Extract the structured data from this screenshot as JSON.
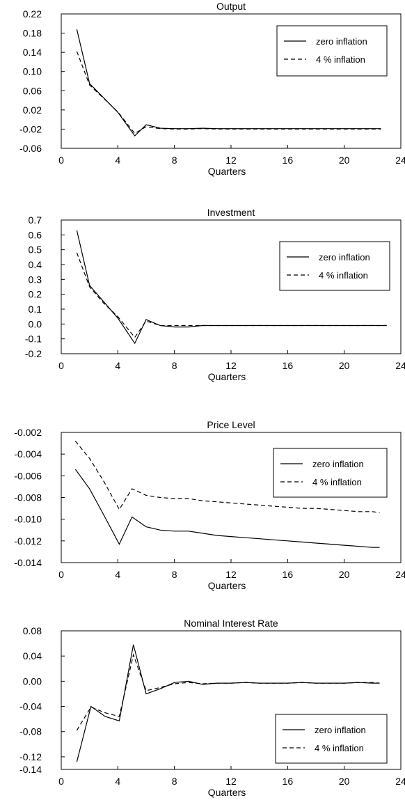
{
  "chart_data": [
    {
      "type": "line",
      "title": "Output",
      "xlabel": "Quarters",
      "ylabel": "",
      "xlim": [
        0,
        24
      ],
      "ylim": [
        -0.06,
        0.22
      ],
      "xticks": [
        0,
        4,
        8,
        12,
        16,
        20,
        24
      ],
      "xtick_labels": [
        "0",
        "4",
        "8",
        "12",
        "16",
        "20",
        "24"
      ],
      "yticks": [
        0.22,
        0.18,
        0.14,
        0.1,
        0.06,
        0.02,
        -0.02,
        -0.06
      ],
      "ytick_labels": [
        "0.22",
        "0.18",
        "0.14",
        "0.10",
        "0.06",
        "0.02",
        "-0.02",
        "-0.06"
      ],
      "legend_position": "top-right",
      "grid": false,
      "series": [
        {
          "name": "zero inflation",
          "style": "solid",
          "x": [
            1.1,
            2,
            3,
            4,
            5.2,
            6,
            7,
            8,
            9,
            10,
            11,
            12,
            13,
            14,
            15,
            16,
            17,
            18,
            19,
            20,
            21,
            22,
            22.6
          ],
          "y": [
            0.188,
            0.075,
            0.045,
            0.015,
            -0.034,
            -0.011,
            -0.018,
            -0.019,
            -0.019,
            -0.018,
            -0.019,
            -0.019,
            -0.019,
            -0.019,
            -0.019,
            -0.019,
            -0.019,
            -0.019,
            -0.019,
            -0.019,
            -0.019,
            -0.019,
            -0.019
          ]
        },
        {
          "name": "4 % inflation",
          "style": "dashed",
          "x": [
            1.1,
            2,
            3,
            4,
            5.2,
            6,
            7,
            8,
            9,
            10,
            11,
            12,
            13,
            14,
            15,
            16,
            17,
            18,
            19,
            20,
            21,
            22,
            22.6
          ],
          "y": [
            0.142,
            0.072,
            0.044,
            0.016,
            -0.029,
            -0.015,
            -0.019,
            -0.02,
            -0.02,
            -0.019,
            -0.02,
            -0.02,
            -0.02,
            -0.02,
            -0.02,
            -0.02,
            -0.02,
            -0.02,
            -0.02,
            -0.02,
            -0.02,
            -0.02,
            -0.02
          ]
        }
      ]
    },
    {
      "type": "line",
      "title": "Investment",
      "xlabel": "Quarters",
      "ylabel": "",
      "xlim": [
        0,
        24
      ],
      "ylim": [
        -0.2,
        0.7
      ],
      "xticks": [
        0,
        4,
        8,
        12,
        16,
        20,
        24
      ],
      "xtick_labels": [
        "0",
        "4",
        "8",
        "12",
        "16",
        "20",
        "24"
      ],
      "yticks": [
        0.7,
        0.6,
        0.5,
        0.4,
        0.3,
        0.2,
        0.1,
        0.0,
        -0.1,
        -0.2
      ],
      "ytick_labels": [
        "0.7",
        "0.6",
        "0.5",
        "0.4",
        "0.3",
        "0.2",
        "0.1",
        "0.0",
        "-0.1",
        "-0.2"
      ],
      "legend_position": "top-right",
      "grid": false,
      "series": [
        {
          "name": "zero inflation",
          "style": "solid",
          "x": [
            1.1,
            2,
            3,
            4,
            5.2,
            6,
            7,
            8,
            9,
            10,
            11,
            12,
            13,
            14,
            15,
            16,
            17,
            18,
            19,
            20,
            21,
            22,
            23
          ],
          "y": [
            0.63,
            0.26,
            0.15,
            0.04,
            -0.13,
            0.03,
            -0.01,
            -0.02,
            -0.02,
            -0.01,
            -0.01,
            -0.01,
            -0.01,
            -0.01,
            -0.01,
            -0.01,
            -0.01,
            -0.01,
            -0.01,
            -0.01,
            -0.01,
            -0.01,
            -0.01
          ]
        },
        {
          "name": "4 % inflation",
          "style": "dashed",
          "x": [
            1.1,
            2,
            3,
            4,
            5.2,
            6,
            7,
            8,
            9,
            10,
            11,
            12,
            13,
            14,
            15,
            16,
            17,
            18,
            19,
            20,
            21,
            22,
            23
          ],
          "y": [
            0.48,
            0.25,
            0.14,
            0.05,
            -0.09,
            0.02,
            -0.01,
            -0.01,
            -0.01,
            -0.01,
            -0.01,
            -0.01,
            -0.01,
            -0.01,
            -0.01,
            -0.01,
            -0.01,
            -0.01,
            -0.01,
            -0.01,
            -0.01,
            -0.01,
            -0.01
          ]
        }
      ]
    },
    {
      "type": "line",
      "title": "Price Level",
      "xlabel": "Quarters",
      "ylabel": "",
      "xlim": [
        0,
        24
      ],
      "ylim": [
        -0.014,
        -0.002
      ],
      "xticks": [
        0,
        4,
        8,
        12,
        16,
        20,
        24
      ],
      "xtick_labels": [
        "0",
        "4",
        "8",
        "12",
        "16",
        "20",
        "24"
      ],
      "yticks": [
        -0.002,
        -0.004,
        -0.006,
        -0.008,
        -0.01,
        -0.012,
        -0.014
      ],
      "ytick_labels": [
        "-0.002",
        "-0.004",
        "-0.006",
        "-0.008",
        "-0.010",
        "-0.012",
        "-0.014"
      ],
      "legend_position": "top-right",
      "grid": false,
      "series": [
        {
          "name": "zero inflation",
          "style": "solid",
          "x": [
            1,
            2,
            3,
            4.1,
            5,
            6,
            7,
            8,
            9,
            10,
            11,
            12,
            13,
            14,
            15,
            16,
            17,
            18,
            19,
            20,
            21,
            22,
            22.5
          ],
          "y": [
            -0.0054,
            -0.0072,
            -0.0096,
            -0.0123,
            -0.0098,
            -0.0107,
            -0.011,
            -0.0111,
            -0.0111,
            -0.0113,
            -0.0115,
            -0.0116,
            -0.0117,
            -0.0118,
            -0.0119,
            -0.012,
            -0.0121,
            -0.0122,
            -0.0123,
            -0.0124,
            -0.0125,
            -0.0126,
            -0.0126
          ]
        },
        {
          "name": "4 % inflation",
          "style": "dashed",
          "x": [
            1,
            2,
            3,
            4.1,
            5,
            6,
            7,
            8,
            9,
            10,
            11,
            12,
            13,
            14,
            15,
            16,
            17,
            18,
            19,
            20,
            21,
            22,
            22.5
          ],
          "y": [
            -0.0028,
            -0.0044,
            -0.0065,
            -0.0091,
            -0.0072,
            -0.0078,
            -0.008,
            -0.0081,
            -0.0081,
            -0.0083,
            -0.0084,
            -0.0085,
            -0.0086,
            -0.0087,
            -0.0088,
            -0.0089,
            -0.009,
            -0.009,
            -0.0091,
            -0.0092,
            -0.0093,
            -0.0093,
            -0.0094
          ]
        }
      ]
    },
    {
      "type": "line",
      "title": "Nominal Interest Rate",
      "xlabel": "Quarters",
      "ylabel": "",
      "xlim": [
        0,
        24
      ],
      "ylim": [
        -0.14,
        0.08
      ],
      "xticks": [
        0,
        4,
        8,
        12,
        16,
        20,
        24
      ],
      "xtick_labels": [
        "0",
        "4",
        "8",
        "12",
        "16",
        "20",
        "24"
      ],
      "yticks": [
        0.08,
        0.04,
        0.0,
        -0.04,
        -0.08,
        -0.12,
        -0.14
      ],
      "ytick_labels": [
        "0.08",
        "0.04",
        "0.00",
        "-0.04",
        "-0.08",
        "-0.12",
        "-0.14"
      ],
      "legend_position": "bottom-right",
      "grid": false,
      "series": [
        {
          "name": "zero inflation",
          "style": "solid",
          "x": [
            1.1,
            2.1,
            3.1,
            4.1,
            5.1,
            6,
            7,
            8,
            9,
            10,
            11,
            12,
            13,
            14,
            15,
            16,
            17,
            18,
            19,
            20,
            21,
            22,
            22.5
          ],
          "y": [
            -0.128,
            -0.04,
            -0.056,
            -0.063,
            0.058,
            -0.02,
            -0.012,
            -0.002,
            0.0,
            -0.005,
            -0.003,
            -0.003,
            -0.002,
            -0.003,
            -0.003,
            -0.003,
            -0.002,
            -0.003,
            -0.003,
            -0.003,
            -0.002,
            -0.003,
            -0.003
          ]
        },
        {
          "name": "4 % inflation",
          "style": "dashed",
          "x": [
            1.1,
            2.1,
            3.1,
            4.1,
            5.1,
            6,
            7,
            8,
            9,
            10,
            11,
            12,
            13,
            14,
            15,
            16,
            17,
            18,
            19,
            20,
            21,
            22,
            22.5
          ],
          "y": [
            -0.078,
            -0.041,
            -0.05,
            -0.056,
            0.042,
            -0.015,
            -0.01,
            -0.004,
            -0.002,
            -0.004,
            -0.003,
            -0.003,
            -0.002,
            -0.003,
            -0.003,
            -0.003,
            -0.002,
            -0.003,
            -0.003,
            -0.003,
            -0.002,
            -0.002,
            -0.003
          ]
        }
      ]
    }
  ]
}
